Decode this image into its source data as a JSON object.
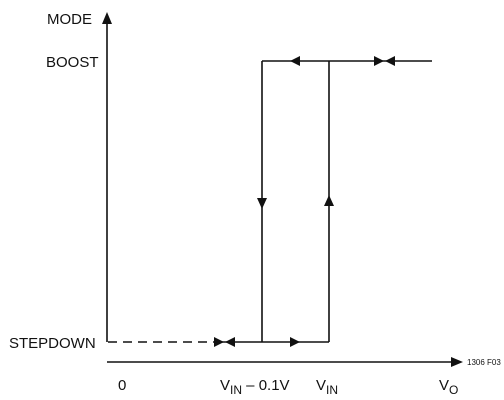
{
  "labels": {
    "y_axis": "MODE",
    "boost": "BOOST",
    "stepdown": "STEPDOWN",
    "origin": "0",
    "x_axis": "V",
    "x_axis_sub": "O",
    "vin_minus": "V",
    "vin_minus_sub": "IN",
    "vin_minus_suffix": " – 0.1V",
    "vin": "V",
    "vin_sub": "IN",
    "figure_id": "1306 F03"
  }
}
